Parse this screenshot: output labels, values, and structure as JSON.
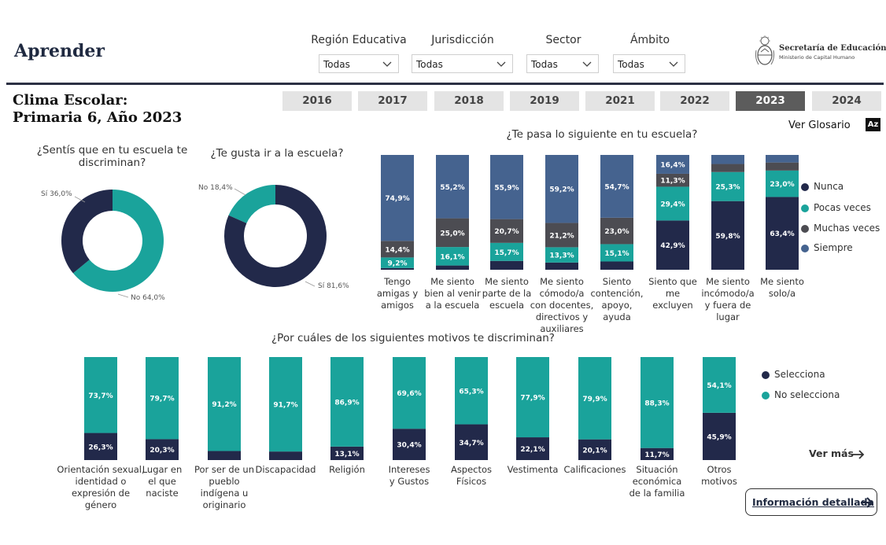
{
  "brand": "Aprender",
  "filters": [
    {
      "label": "Región Educativa",
      "value": "Todas"
    },
    {
      "label": "Jurisdicción",
      "value": "Todas"
    },
    {
      "label": "Sector",
      "value": "Todas"
    },
    {
      "label": "Ámbito",
      "value": "Todas"
    }
  ],
  "logo": {
    "title": "Secretaría de Educación",
    "subtitle": "Ministerio de Capital Humano"
  },
  "page_title": {
    "line1": "Clima Escolar:",
    "line2": "Primaria 6, Año 2023"
  },
  "years": [
    "2016",
    "2017",
    "2018",
    "2019",
    "2021",
    "2022",
    "2023",
    "2024"
  ],
  "active_year": "2023",
  "glosario": "Ver Glosario",
  "az_icon": "Az",
  "colors": {
    "navy": "#22294a",
    "teal": "#1aa39b",
    "gray": "#4c4c52",
    "slate": "#45638f"
  },
  "chart_data": [
    {
      "type": "pie",
      "title": "¿Sentís que en tu escuela te discriminan?",
      "slices": [
        {
          "name": "Sí",
          "value": 36.0,
          "label": "Sí 36,0%"
        },
        {
          "name": "No",
          "value": 64.0,
          "label": "No 64,0%"
        }
      ]
    },
    {
      "type": "pie",
      "title": "¿Te gusta ir a la escuela?",
      "slices": [
        {
          "name": "Sí",
          "value": 81.6,
          "label": "Sí 81,6%"
        },
        {
          "name": "No",
          "value": 18.4,
          "label": "No 18,4%"
        }
      ]
    },
    {
      "type": "bar",
      "stacked": true,
      "title": "¿Te pasa lo siguiente en tu escuela?",
      "legend": [
        "Nunca",
        "Pocas veces",
        "Muchas veces",
        "Siempre"
      ],
      "categories": [
        [
          "Tengo",
          "amigas y",
          "amigos"
        ],
        [
          "Me siento",
          "bien al venir",
          "a la escuela"
        ],
        [
          "Me siento",
          "parte de la",
          "escuela"
        ],
        [
          "Me siento",
          "cómodo/a",
          "con docentes,",
          "directivos y",
          "auxiliares"
        ],
        [
          "Siento",
          "contención,",
          "apoyo,",
          "ayuda"
        ],
        [
          "Siento que",
          "me",
          "excluyen"
        ],
        [
          "Me siento",
          "incómodo/a",
          "y fuera de",
          "lugar"
        ],
        [
          "Me siento",
          "solo/a"
        ]
      ],
      "series": [
        {
          "name": "Nunca",
          "values": [
            1.5,
            3.7,
            7.7,
            6.3,
            7.2,
            42.9,
            59.8,
            63.4
          ],
          "labels": [
            "",
            "",
            "",
            "",
            "",
            "42,9%",
            "59,8%",
            "63,4%"
          ]
        },
        {
          "name": "Pocas veces",
          "values": [
            9.2,
            16.1,
            15.7,
            13.3,
            15.1,
            29.4,
            25.3,
            23.0
          ],
          "labels": [
            "9,2%",
            "16,1%",
            "15,7%",
            "13,3%",
            "15,1%",
            "29,4%",
            "25,3%",
            "23,0%"
          ]
        },
        {
          "name": "Muchas veces",
          "values": [
            14.4,
            25.0,
            20.7,
            21.2,
            23.0,
            11.3,
            7.0,
            7.0
          ],
          "labels": [
            "14,4%",
            "25,0%",
            "20,7%",
            "21,2%",
            "23,0%",
            "11,3%",
            "",
            ""
          ]
        },
        {
          "name": "Siempre",
          "values": [
            74.9,
            55.2,
            55.9,
            59.2,
            54.7,
            16.4,
            7.9,
            6.6
          ],
          "labels": [
            "74,9%",
            "55,2%",
            "55,9%",
            "59,2%",
            "54,7%",
            "16,4%",
            "",
            ""
          ]
        }
      ],
      "ylim": [
        0,
        100
      ]
    },
    {
      "type": "bar",
      "stacked": true,
      "title": "¿Por cuáles de los siguientes motivos te discriminan?",
      "legend": [
        "Selecciona",
        "No selecciona"
      ],
      "categories": [
        [
          "Orientación sexual,",
          "identidad o",
          "expresión de",
          "género"
        ],
        [
          "Lugar en",
          "el que",
          "naciste"
        ],
        [
          "Por ser de un",
          "pueblo",
          "indígena u",
          "originario"
        ],
        [
          "Discapacidad"
        ],
        [
          "Religión"
        ],
        [
          "Intereses",
          "y Gustos"
        ],
        [
          "Aspectos",
          "Físicos"
        ],
        [
          "Vestimenta"
        ],
        [
          "Calificaciones"
        ],
        [
          "Situación",
          "económica",
          "de la familia"
        ],
        [
          "Otros",
          "motivos"
        ]
      ],
      "series": [
        {
          "name": "Selecciona",
          "values": [
            26.3,
            20.3,
            8.8,
            8.3,
            13.1,
            30.4,
            34.7,
            22.1,
            20.1,
            11.7,
            45.9
          ],
          "labels": [
            "26,3%",
            "20,3%",
            "",
            "",
            "13,1%",
            "30,4%",
            "34,7%",
            "22,1%",
            "20,1%",
            "11,7%",
            "45,9%"
          ]
        },
        {
          "name": "No selecciona",
          "values": [
            73.7,
            79.7,
            91.2,
            91.7,
            86.9,
            69.6,
            65.3,
            77.9,
            79.9,
            88.3,
            54.1
          ],
          "labels": [
            "73,7%",
            "79,7%",
            "91,2%",
            "91,7%",
            "86,9%",
            "69,6%",
            "65,3%",
            "77,9%",
            "79,9%",
            "88,3%",
            "54,1%"
          ]
        }
      ],
      "ylim": [
        0,
        100
      ]
    }
  ],
  "ver_mas": "Ver más",
  "info_button": "Información detallada"
}
